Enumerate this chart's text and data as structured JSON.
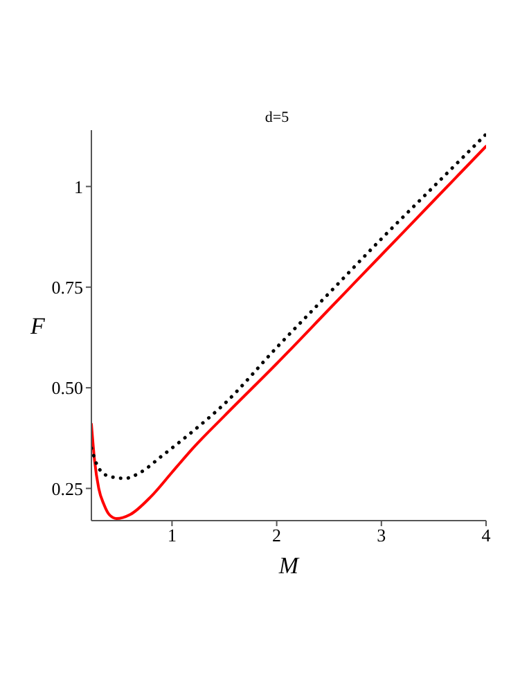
{
  "chart_data": {
    "type": "line",
    "title": "d=5",
    "xlabel": "M",
    "ylabel": "F",
    "xlim": [
      0.23,
      4
    ],
    "xticks": [
      1,
      2,
      3,
      4
    ],
    "ylim": [
      0.17,
      1.14
    ],
    "yticks": [
      {
        "value": 0.25,
        "label": "0.25"
      },
      {
        "value": 0.5,
        "label": "0.50"
      },
      0.75,
      1
    ],
    "marker": "none",
    "grid": false,
    "legend": false,
    "series": [
      {
        "color": "#ff0000",
        "line_style": "solid",
        "x": [
          0.23,
          0.26,
          0.3,
          0.35,
          0.4,
          0.47,
          0.6,
          0.8,
          1.0,
          1.2,
          1.5,
          2,
          2.5,
          3,
          3.5,
          4
        ],
        "values": [
          0.41,
          0.32,
          0.25,
          0.21,
          0.185,
          0.175,
          0.185,
          0.23,
          0.29,
          0.35,
          0.43,
          0.56,
          0.695,
          0.83,
          0.965,
          1.1
        ]
      },
      {
        "color": "#000000",
        "line_style": "dotted",
        "x": [
          0.23,
          0.3,
          0.4,
          0.55,
          0.7,
          0.9,
          1.19,
          1.5,
          2,
          2.5,
          3,
          3.5,
          4
        ],
        "values": [
          0.35,
          0.3,
          0.28,
          0.275,
          0.29,
          0.33,
          0.39,
          0.46,
          0.6,
          0.735,
          0.87,
          1.0,
          1.13
        ]
      }
    ]
  }
}
